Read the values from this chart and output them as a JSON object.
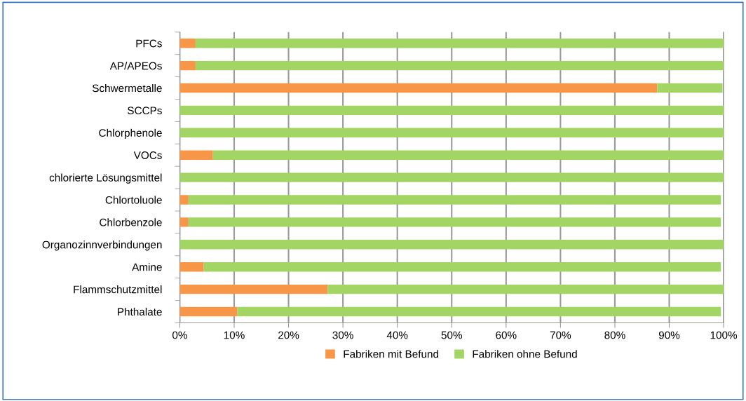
{
  "chart_data": {
    "type": "bar",
    "orientation": "horizontal",
    "stacked": true,
    "categories": [
      "PFCs",
      "AP/APEOs",
      "Schwermetalle",
      "SCCPs",
      "Chlorphenole",
      "VOCs",
      "chlorierte Lösungsmittel",
      "Chlortoluole",
      "Chlorbenzole",
      "Organozinnverbindungen",
      "Amine",
      "Flammschutzmittel",
      "Phthalate"
    ],
    "series": [
      {
        "name": "Fabriken mit Befund",
        "color": "#f79646",
        "values": [
          2.9,
          2.9,
          87.8,
          0,
          0,
          6.1,
          0,
          1.6,
          1.6,
          0,
          4.4,
          27.2,
          10.6
        ]
      },
      {
        "name": "Fabriken ohne Befund",
        "color": "#a2d564",
        "values": [
          97.1,
          97.1,
          12.0,
          100,
          100,
          93.9,
          100,
          97.9,
          97.9,
          100,
          95.1,
          72.8,
          88.9
        ]
      }
    ],
    "xlim": [
      0,
      100
    ],
    "xticks": [
      {
        "value": 0,
        "label": "0%"
      },
      {
        "value": 10,
        "label": "10%"
      },
      {
        "value": 20,
        "label": "20%"
      },
      {
        "value": 30,
        "label": "30%"
      },
      {
        "value": 40,
        "label": "40%"
      },
      {
        "value": 50,
        "label": "50%"
      },
      {
        "value": 60,
        "label": "60%"
      },
      {
        "value": 70,
        "label": "70%"
      },
      {
        "value": 80,
        "label": "80%"
      },
      {
        "value": 90,
        "label": "90%"
      },
      {
        "value": 100,
        "label": "100%"
      }
    ],
    "grid": "x",
    "legend": "bottom"
  }
}
